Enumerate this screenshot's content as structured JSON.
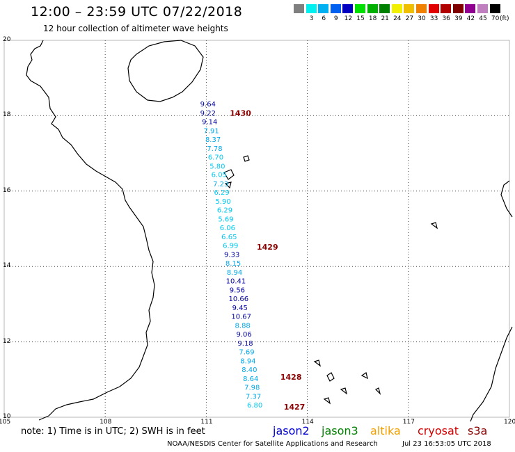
{
  "header": {
    "title": "12:00 – 23:59 UTC 07/22/2018",
    "subtitle": "12 hour collection of altimeter wave heights"
  },
  "color_scale": {
    "unit": "(ft)",
    "entries": [
      {
        "label": "",
        "color": "#7f7f7f"
      },
      {
        "label": "3",
        "color": "#00f0f0"
      },
      {
        "label": "6",
        "color": "#00b0f0"
      },
      {
        "label": "9",
        "color": "#0060f0"
      },
      {
        "label": "12",
        "color": "#0000c0"
      },
      {
        "label": "15",
        "color": "#00e000"
      },
      {
        "label": "18",
        "color": "#00b000"
      },
      {
        "label": "21",
        "color": "#008000"
      },
      {
        "label": "24",
        "color": "#f0f000"
      },
      {
        "label": "27",
        "color": "#f0c000"
      },
      {
        "label": "30",
        "color": "#f08000"
      },
      {
        "label": "33",
        "color": "#e00000"
      },
      {
        "label": "36",
        "color": "#b00000"
      },
      {
        "label": "39",
        "color": "#800000"
      },
      {
        "label": "42",
        "color": "#900090"
      },
      {
        "label": "45",
        "color": "#c080c0"
      },
      {
        "label": "70",
        "color": "#000000"
      }
    ]
  },
  "map": {
    "lon_ticks": [
      "105",
      "108",
      "111",
      "114",
      "117",
      "120"
    ],
    "lat_ticks": [
      "20",
      "18",
      "16",
      "14",
      "12",
      "10"
    ],
    "lon_range": [
      105,
      120
    ],
    "lat_range": [
      10,
      20
    ]
  },
  "observations": [
    {
      "lon": 111.05,
      "lat": 18.25,
      "value": "9.64",
      "color": "#0000a0"
    },
    {
      "lon": 111.05,
      "lat": 18.01,
      "value": "9.22",
      "color": "#0000a0"
    },
    {
      "lon": 111.1,
      "lat": 17.78,
      "value": "9.14",
      "color": "#0000a0"
    },
    {
      "lon": 111.15,
      "lat": 17.54,
      "value": "7.91",
      "color": "#00a8e8"
    },
    {
      "lon": 111.2,
      "lat": 17.31,
      "value": "8.37",
      "color": "#00a8e8"
    },
    {
      "lon": 111.25,
      "lat": 17.07,
      "value": "7.78",
      "color": "#00a8e8"
    },
    {
      "lon": 111.28,
      "lat": 16.84,
      "value": "6.70",
      "color": "#00c8f0"
    },
    {
      "lon": 111.33,
      "lat": 16.6,
      "value": "5.80",
      "color": "#00c8f0"
    },
    {
      "lon": 111.38,
      "lat": 16.37,
      "value": "6.05",
      "color": "#00c8f0"
    },
    {
      "lon": 111.43,
      "lat": 16.13,
      "value": "7.23",
      "color": "#00a8e8"
    },
    {
      "lon": 111.46,
      "lat": 15.9,
      "value": "6.29",
      "color": "#00c8f0"
    },
    {
      "lon": 111.5,
      "lat": 15.66,
      "value": "5.90",
      "color": "#00c8f0"
    },
    {
      "lon": 111.55,
      "lat": 15.43,
      "value": "6.29",
      "color": "#00c8f0"
    },
    {
      "lon": 111.58,
      "lat": 15.19,
      "value": "5.69",
      "color": "#00c8f0"
    },
    {
      "lon": 111.63,
      "lat": 14.96,
      "value": "6.06",
      "color": "#00c8f0"
    },
    {
      "lon": 111.68,
      "lat": 14.72,
      "value": "6.65",
      "color": "#00c8f0"
    },
    {
      "lon": 111.72,
      "lat": 14.49,
      "value": "6.99",
      "color": "#00c8f0"
    },
    {
      "lon": 111.76,
      "lat": 14.25,
      "value": "9.33",
      "color": "#0000a0"
    },
    {
      "lon": 111.8,
      "lat": 14.02,
      "value": "8.15",
      "color": "#00a8e8"
    },
    {
      "lon": 111.84,
      "lat": 13.78,
      "value": "8.94",
      "color": "#00a8e8"
    },
    {
      "lon": 111.88,
      "lat": 13.55,
      "value": "10.41",
      "color": "#0000a0"
    },
    {
      "lon": 111.92,
      "lat": 13.31,
      "value": "9.56",
      "color": "#0000a0"
    },
    {
      "lon": 111.96,
      "lat": 13.08,
      "value": "10.66",
      "color": "#0000a0"
    },
    {
      "lon": 112.0,
      "lat": 12.84,
      "value": "9.45",
      "color": "#0000a0"
    },
    {
      "lon": 112.04,
      "lat": 12.61,
      "value": "10.67",
      "color": "#0000a0"
    },
    {
      "lon": 112.08,
      "lat": 12.37,
      "value": "8.88",
      "color": "#00a8e8"
    },
    {
      "lon": 112.12,
      "lat": 12.14,
      "value": "9.06",
      "color": "#0000a0"
    },
    {
      "lon": 112.16,
      "lat": 11.9,
      "value": "9.18",
      "color": "#0000a0"
    },
    {
      "lon": 112.2,
      "lat": 11.67,
      "value": "7.69",
      "color": "#00a8e8"
    },
    {
      "lon": 112.24,
      "lat": 11.43,
      "value": "8.94",
      "color": "#00a8e8"
    },
    {
      "lon": 112.28,
      "lat": 11.2,
      "value": "8.40",
      "color": "#00a8e8"
    },
    {
      "lon": 112.32,
      "lat": 10.96,
      "value": "8.64",
      "color": "#00a8e8"
    },
    {
      "lon": 112.36,
      "lat": 10.73,
      "value": "7.98",
      "color": "#00a8e8"
    },
    {
      "lon": 112.4,
      "lat": 10.49,
      "value": "7.37",
      "color": "#00a8e8"
    },
    {
      "lon": 112.44,
      "lat": 10.26,
      "value": "6.80",
      "color": "#00c8f0"
    }
  ],
  "pass_labels": [
    {
      "lon": 111.7,
      "lat": 18.0,
      "text": "1430",
      "color": "#8b0000"
    },
    {
      "lon": 112.5,
      "lat": 14.45,
      "text": "1429",
      "color": "#8b0000"
    },
    {
      "lon": 113.2,
      "lat": 11.0,
      "text": "1428",
      "color": "#8b0000"
    },
    {
      "lon": 113.3,
      "lat": 10.2,
      "text": "1427",
      "color": "#8b0000"
    }
  ],
  "footer": {
    "note": "note:  1) Time is in UTC;  2) SWH is in feet",
    "credit": "NOAA/NESDIS Center for Satellite Applications and Research",
    "timestamp": "Jul 23 16:53:05 UTC 2018",
    "legend": [
      {
        "label": "jason2",
        "color": "#0000d0"
      },
      {
        "label": "jason3",
        "color": "#008000"
      },
      {
        "label": "altika",
        "color": "#f0a000"
      },
      {
        "label": "cryosat",
        "color": "#d00000"
      },
      {
        "label": "s3a",
        "color": "#8b0000"
      }
    ]
  }
}
